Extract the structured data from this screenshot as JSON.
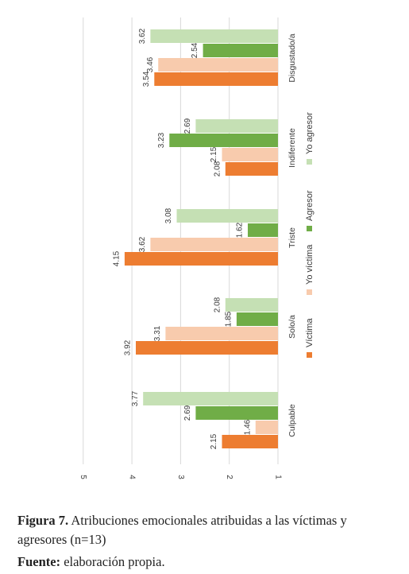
{
  "chart_data": {
    "type": "bar",
    "orientation": "rotated",
    "categories": [
      "Culpable",
      "Solo/a",
      "Triste",
      "Indiferente",
      "Disgustado/a"
    ],
    "series": [
      {
        "name": "Víctima",
        "values": [
          2.15,
          3.92,
          4.15,
          2.08,
          3.54
        ]
      },
      {
        "name": "Yo víctima",
        "values": [
          1.46,
          3.31,
          3.62,
          2.15,
          3.46
        ]
      },
      {
        "name": "Agresor",
        "values": [
          2.69,
          1.85,
          1.62,
          3.23,
          2.54
        ]
      },
      {
        "name": "Yo agresor",
        "values": [
          3.77,
          2.08,
          3.08,
          2.69,
          3.62
        ]
      }
    ],
    "data_labels": [
      [
        "2.15",
        "1.46",
        "2.69",
        "3.77"
      ],
      [
        "3.92",
        "3.31",
        "1.85",
        "2.08"
      ],
      [
        "4.15",
        "3.62",
        "1.62",
        "3.08"
      ],
      [
        "2.08",
        "2.15",
        "3.23",
        "2.69"
      ],
      [
        "3.54",
        "3.46",
        "2.54",
        "3.62"
      ]
    ],
    "colors": [
      "#ed7d31",
      "#f8cbad",
      "#70ad47",
      "#c5e0b4"
    ],
    "value_axis": {
      "min": 1,
      "max": 5,
      "ticks": [
        "1",
        "2",
        "3",
        "4",
        "5"
      ]
    },
    "grid": true,
    "legend_position": "right"
  },
  "caption": {
    "figure_label": "Figura 7.",
    "figure_text": "Atribuciones emocionales atribuidas a las víctimas y agresores (n=13)",
    "source_label": "Fuente:",
    "source_text": "elaboración propia."
  }
}
